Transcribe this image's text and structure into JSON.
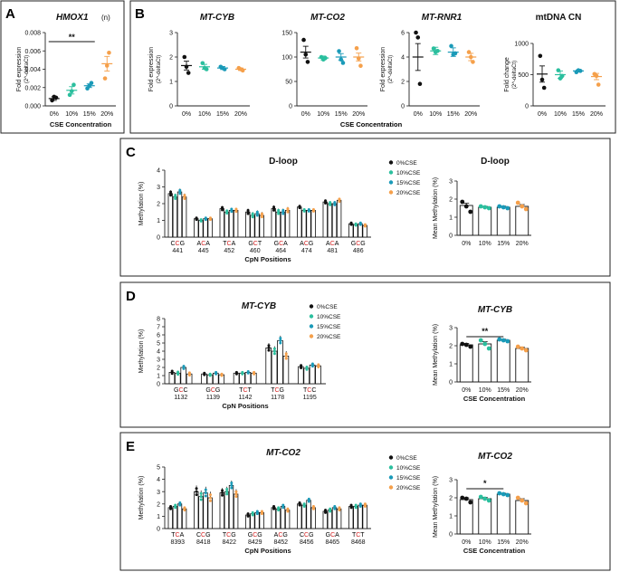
{
  "panels": {
    "A": {
      "letter": "A"
    },
    "B": {
      "letter": "B",
      "xlabel": "CSE Concentration"
    },
    "C": {
      "letter": "C"
    },
    "D": {
      "letter": "D"
    },
    "E": {
      "letter": "E"
    }
  },
  "colors": {
    "c0": "#111111",
    "c10": "#2bbf9e",
    "c15": "#1a9ab8",
    "c20": "#f5a04b",
    "cpg": "#d62020"
  },
  "chart_data": [
    {
      "id": "A",
      "type": "scatter",
      "title": "HMOX1",
      "title_suffix": "(n)",
      "ylabel": "Fold expression",
      "ylabel2": "(2^-deltaCt)",
      "xlabel": "CSE Concentration",
      "categories": [
        "0%",
        "10%",
        "15%",
        "20%"
      ],
      "ylim": [
        0,
        0.008
      ],
      "yticks": [
        "0.000",
        "0.002",
        "0.004",
        "0.006",
        "0.008"
      ],
      "means": [
        0.0008,
        0.0017,
        0.0022,
        0.0046
      ],
      "sem": [
        0.0002,
        0.0004,
        0.0002,
        0.0008
      ],
      "points": [
        [
          0.0006,
          0.001,
          0.0009
        ],
        [
          0.0012,
          0.0016,
          0.0023
        ],
        [
          0.0019,
          0.0022,
          0.0025
        ],
        [
          0.003,
          0.0044,
          0.0058
        ]
      ],
      "significance": {
        "label": "**",
        "from": 0,
        "to": 2
      }
    },
    {
      "id": "B1",
      "type": "scatter",
      "title": "MT-CYB",
      "ylabel": "Fold expression",
      "ylabel2": "(2^-deltaCt)",
      "categories": [
        "0%",
        "10%",
        "15%",
        "20%"
      ],
      "ylim": [
        0,
        3
      ],
      "yticks": [
        "0",
        "1",
        "2",
        "3"
      ],
      "means": [
        1.65,
        1.6,
        1.55,
        1.5
      ],
      "sem": [
        0.18,
        0.1,
        0.06,
        0.05
      ],
      "points": [
        [
          2.0,
          1.6,
          1.35
        ],
        [
          1.75,
          1.55,
          1.5
        ],
        [
          1.6,
          1.55,
          1.5
        ],
        [
          1.55,
          1.5,
          1.45
        ]
      ]
    },
    {
      "id": "B2",
      "type": "scatter",
      "title": "MT-CO2",
      "ylabel": "",
      "ylabel2": "",
      "categories": [
        "0%",
        "10%",
        "15%",
        "20%"
      ],
      "ylim": [
        0,
        150
      ],
      "yticks": [
        "0",
        "50",
        "100",
        "150"
      ],
      "means": [
        110,
        98,
        100,
        100
      ],
      "sem": [
        12,
        4,
        7,
        8
      ],
      "points": [
        [
          135,
          105,
          90
        ],
        [
          100,
          95,
          98
        ],
        [
          112,
          95,
          88
        ],
        [
          118,
          97,
          82
        ]
      ]
    },
    {
      "id": "B3",
      "type": "scatter",
      "title": "MT-RNR1",
      "ylabel": "Fold expression",
      "ylabel2": "(2^-deltaCt)",
      "categories": [
        "0%",
        "10%",
        "15%",
        "20%"
      ],
      "ylim": [
        0,
        6
      ],
      "yticks": [
        "0",
        "2",
        "4",
        "6"
      ],
      "means": [
        4.0,
        4.5,
        4.4,
        4.0
      ],
      "sem": [
        1.1,
        0.3,
        0.35,
        0.3
      ],
      "points": [
        [
          6.0,
          5.6,
          1.8
        ],
        [
          4.7,
          4.4,
          4.5
        ],
        [
          4.9,
          4.2,
          4.3
        ],
        [
          4.4,
          4.0,
          3.6
        ]
      ]
    },
    {
      "id": "B4",
      "type": "scatter",
      "title": "mtDNA CN",
      "ylabel": "Fold change",
      "ylabel2": "(2^-deltaCt)",
      "categories": [
        "0%",
        "10%",
        "15%",
        "20%"
      ],
      "ylim": [
        0,
        1000
      ],
      "yticks": [
        "0",
        "500",
        "1000"
      ],
      "means": [
        510,
        500,
        560,
        470
      ],
      "sem": [
        130,
        60,
        15,
        50
      ],
      "points": [
        [
          800,
          420,
          290
        ],
        [
          570,
          440,
          480
        ],
        [
          540,
          570,
          560
        ],
        [
          510,
          480,
          340
        ]
      ]
    },
    {
      "id": "C1",
      "type": "bar",
      "title": "D-loop",
      "ylabel": "Methylation (%)",
      "xlabel": "CpN Positions",
      "ylim": [
        0,
        4
      ],
      "yticks": [
        "0",
        "1",
        "2",
        "3",
        "4"
      ],
      "positions": [
        {
          "pre": "C",
          "cpg": "C",
          "post": "G",
          "num": "441"
        },
        {
          "pre": "A",
          "cpg": "C",
          "post": "A",
          "num": "445"
        },
        {
          "pre": "T",
          "cpg": "C",
          "post": "A",
          "num": "452"
        },
        {
          "pre": "G",
          "cpg": "C",
          "post": "T",
          "num": "460"
        },
        {
          "pre": "G",
          "cpg": "C",
          "post": "A",
          "num": "464"
        },
        {
          "pre": "A",
          "cpg": "C",
          "post": "G",
          "num": "474"
        },
        {
          "pre": "A",
          "cpg": "C",
          "post": "A",
          "num": "481"
        },
        {
          "pre": "G",
          "cpg": "C",
          "post": "G",
          "num": "486"
        }
      ],
      "series": [
        {
          "name": "0%CSE",
          "values": [
            2.6,
            1.1,
            1.7,
            1.5,
            1.7,
            1.8,
            2.1,
            0.8
          ]
        },
        {
          "name": "10%CSE",
          "values": [
            2.4,
            1.0,
            1.5,
            1.3,
            1.5,
            1.6,
            2.0,
            0.75
          ]
        },
        {
          "name": "15%CSE",
          "values": [
            2.7,
            1.1,
            1.6,
            1.4,
            1.5,
            1.6,
            2.0,
            0.8
          ]
        },
        {
          "name": "20%CSE",
          "values": [
            2.4,
            1.1,
            1.6,
            1.3,
            1.6,
            1.6,
            2.2,
            0.7
          ]
        }
      ],
      "errors": [
        0.2,
        0.1,
        0.15,
        0.2,
        0.2,
        0.1,
        0.15,
        0.1
      ],
      "legend": [
        "0%CSE",
        "10%CSE",
        "15%CSE",
        "20%CSE"
      ]
    },
    {
      "id": "C2",
      "type": "bar",
      "title": "D-loop",
      "ylabel": "Mean Methylation (%)",
      "categories": [
        "0%",
        "10%",
        "15%",
        "20%"
      ],
      "ylim": [
        0,
        3
      ],
      "yticks": [
        "0",
        "1",
        "2",
        "3"
      ],
      "values": [
        1.65,
        1.55,
        1.55,
        1.6
      ],
      "errors": [
        0.12,
        0.05,
        0.06,
        0.1
      ],
      "points": [
        [
          1.85,
          1.6,
          1.3
        ],
        [
          1.6,
          1.55,
          1.5
        ],
        [
          1.6,
          1.55,
          1.5
        ],
        [
          1.8,
          1.6,
          1.45
        ]
      ]
    },
    {
      "id": "D1",
      "type": "bar",
      "title": "MT-CYB",
      "ylabel": "Methylation (%)",
      "xlabel": "CpN Positions",
      "ylim": [
        0,
        8
      ],
      "yticks": [
        "0",
        "1",
        "2",
        "3",
        "4",
        "5",
        "6",
        "7",
        "8"
      ],
      "positions": [
        {
          "pre": "G",
          "cpg": "C",
          "post": "C",
          "num": "1132"
        },
        {
          "pre": "G",
          "cpg": "C",
          "post": "G",
          "num": "1139"
        },
        {
          "pre": "T",
          "cpg": "C",
          "post": "T",
          "num": "1142"
        },
        {
          "pre": "T",
          "cpg": "C",
          "post": "G",
          "num": "1178"
        },
        {
          "pre": "T",
          "cpg": "C",
          "post": "C",
          "num": "1195"
        }
      ],
      "series": [
        {
          "name": "0%CSE",
          "values": [
            1.4,
            1.2,
            1.3,
            4.4,
            2.1
          ]
        },
        {
          "name": "10%CSE",
          "values": [
            1.3,
            1.1,
            1.3,
            4.0,
            1.9
          ]
        },
        {
          "name": "15%CSE",
          "values": [
            2.0,
            1.3,
            1.4,
            5.3,
            2.3
          ]
        },
        {
          "name": "20%CSE",
          "values": [
            1.2,
            1.1,
            1.3,
            3.4,
            2.2
          ]
        }
      ],
      "errors": [
        0.3,
        0.2,
        0.2,
        0.6,
        0.3
      ],
      "legend": [
        "0%CSE",
        "10%CSE",
        "15%CSE",
        "20%CSE"
      ]
    },
    {
      "id": "D2",
      "type": "bar",
      "title": "MT-CYB",
      "ylabel": "Mean Methylation (%)",
      "xlabel": "CSE Concentration",
      "categories": [
        "0%",
        "10%",
        "15%",
        "20%"
      ],
      "ylim": [
        0,
        3
      ],
      "yticks": [
        "0",
        "1",
        "2",
        "3"
      ],
      "values": [
        2.05,
        2.1,
        2.3,
        1.85
      ],
      "errors": [
        0.08,
        0.12,
        0.06,
        0.08
      ],
      "points": [
        [
          2.1,
          2.05,
          1.95
        ],
        [
          2.3,
          2.1,
          1.85
        ],
        [
          2.35,
          2.3,
          2.25
        ],
        [
          1.95,
          1.85,
          1.75
        ]
      ],
      "significance": {
        "label": "**",
        "from": 0,
        "to": 2
      }
    },
    {
      "id": "E1",
      "type": "bar",
      "title": "MT-CO2",
      "ylabel": "Methylation (%)",
      "xlabel": "CpN Positions",
      "ylim": [
        0,
        5
      ],
      "yticks": [
        "0",
        "1",
        "2",
        "3",
        "4",
        "5"
      ],
      "positions": [
        {
          "pre": "T",
          "cpg": "C",
          "post": "A",
          "num": "8393"
        },
        {
          "pre": "C",
          "cpg": "C",
          "post": "G",
          "num": "8418"
        },
        {
          "pre": "T",
          "cpg": "C",
          "post": "G",
          "num": "8422"
        },
        {
          "pre": "G",
          "cpg": "C",
          "post": "G",
          "num": "8429"
        },
        {
          "pre": "A",
          "cpg": "C",
          "post": "G",
          "num": "8452"
        },
        {
          "pre": "C",
          "cpg": "C",
          "post": "G",
          "num": "8456"
        },
        {
          "pre": "G",
          "cpg": "C",
          "post": "A",
          "num": "8465"
        },
        {
          "pre": "T",
          "cpg": "C",
          "post": "T",
          "num": "8468"
        }
      ],
      "series": [
        {
          "name": "0%CSE",
          "values": [
            1.7,
            3.0,
            2.9,
            1.1,
            1.7,
            2.0,
            1.4,
            1.8
          ]
        },
        {
          "name": "10%CSE",
          "values": [
            1.8,
            2.6,
            3.0,
            1.2,
            1.6,
            1.9,
            1.5,
            1.8
          ]
        },
        {
          "name": "15%CSE",
          "values": [
            2.0,
            2.9,
            3.5,
            1.3,
            1.8,
            2.3,
            1.7,
            1.9
          ]
        },
        {
          "name": "20%CSE",
          "values": [
            1.6,
            2.5,
            2.8,
            1.3,
            1.5,
            1.7,
            1.6,
            1.9
          ]
        }
      ],
      "errors": [
        0.2,
        0.5,
        0.4,
        0.2,
        0.2,
        0.2,
        0.2,
        0.2
      ],
      "legend": [
        "0%CSE",
        "10%CSE",
        "15%CSE",
        "20%CSE"
      ]
    },
    {
      "id": "E2",
      "type": "bar",
      "title": "MT-CO2",
      "ylabel": "Mean Methylation (%)",
      "xlabel": "CSE  Concentration",
      "categories": [
        "0%",
        "10%",
        "15%",
        "20%"
      ],
      "ylim": [
        0,
        3
      ],
      "yticks": [
        "0",
        "1",
        "2",
        "3"
      ],
      "values": [
        1.9,
        1.95,
        2.2,
        1.85
      ],
      "errors": [
        0.1,
        0.08,
        0.05,
        0.1
      ],
      "points": [
        [
          2.0,
          1.95,
          1.75
        ],
        [
          2.05,
          1.95,
          1.85
        ],
        [
          2.25,
          2.2,
          2.15
        ],
        [
          2.0,
          1.85,
          1.7
        ]
      ],
      "significance": {
        "label": "*",
        "from": 0,
        "to": 2
      }
    }
  ]
}
